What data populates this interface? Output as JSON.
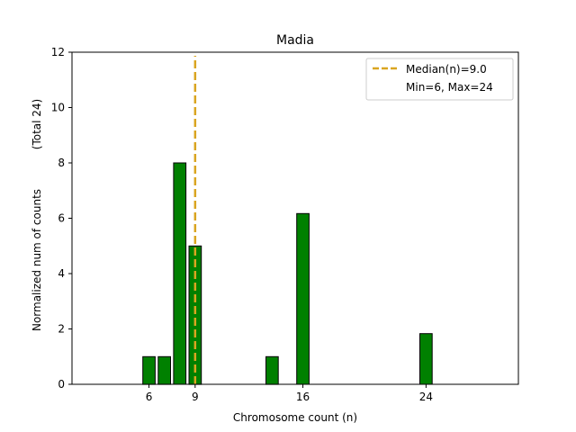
{
  "chart_data": {
    "type": "bar",
    "title": "Madia",
    "xlabel": "Chromosome count (n)",
    "ylabel": "Normalized num of counts",
    "ylabel_total": "(Total 24)",
    "xlim": [
      1,
      30
    ],
    "ylim": [
      0,
      12
    ],
    "xticks": [
      6,
      9,
      16,
      24
    ],
    "yticks": [
      0,
      2,
      4,
      6,
      8,
      10,
      12
    ],
    "bar_color": "#008000",
    "bar_edge_color": "#000000",
    "median_color": "#DAA520",
    "bars": [
      {
        "x": 6,
        "value": 1
      },
      {
        "x": 7,
        "value": 1
      },
      {
        "x": 8,
        "value": 8
      },
      {
        "x": 9,
        "value": 5
      },
      {
        "x": 14,
        "value": 1
      },
      {
        "x": 16,
        "value": 6.17
      },
      {
        "x": 24,
        "value": 1.83
      }
    ],
    "median": 9.0,
    "legend": {
      "position": "top-right",
      "entries": [
        "Median(n)=9.0",
        "Min=6, Max=24"
      ]
    }
  }
}
